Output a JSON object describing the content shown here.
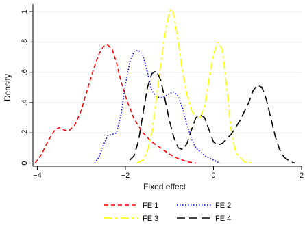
{
  "chart_data": {
    "type": "line",
    "title": "",
    "xlabel": "Fixed effect",
    "ylabel": "Density",
    "xlim": [
      -4.1,
      2.0
    ],
    "ylim": [
      -0.02,
      1.05
    ],
    "x_ticks": [
      -4,
      -2,
      0,
      2
    ],
    "x_tick_labels": [
      "−4",
      "−2",
      "0",
      "2"
    ],
    "y_ticks": [
      0,
      0.2,
      0.4,
      0.6,
      0.8,
      1
    ],
    "y_tick_labels": [
      "0",
      ".2",
      ".4",
      ".6",
      ".8",
      "1"
    ],
    "grid": "horizontal",
    "legend_position": "bottom",
    "series": [
      {
        "name": "FE 1",
        "color": "#ff0000",
        "dash": "short-dash",
        "points": [
          [
            -4.05,
            0.0
          ],
          [
            -3.9,
            0.06
          ],
          [
            -3.75,
            0.15
          ],
          [
            -3.6,
            0.22
          ],
          [
            -3.5,
            0.235
          ],
          [
            -3.4,
            0.22
          ],
          [
            -3.3,
            0.21
          ],
          [
            -3.15,
            0.25
          ],
          [
            -3.0,
            0.35
          ],
          [
            -2.85,
            0.5
          ],
          [
            -2.7,
            0.64
          ],
          [
            -2.6,
            0.72
          ],
          [
            -2.5,
            0.77
          ],
          [
            -2.4,
            0.78
          ],
          [
            -2.3,
            0.75
          ],
          [
            -2.2,
            0.66
          ],
          [
            -2.1,
            0.54
          ],
          [
            -1.95,
            0.4
          ],
          [
            -1.8,
            0.29
          ],
          [
            -1.6,
            0.2
          ],
          [
            -1.4,
            0.14
          ],
          [
            -1.2,
            0.1
          ],
          [
            -1.0,
            0.06
          ],
          [
            -0.8,
            0.03
          ],
          [
            -0.6,
            0.01
          ],
          [
            -0.4,
            0.0
          ]
        ]
      },
      {
        "name": "FE 2",
        "color": "#0000ff",
        "dash": "dotted",
        "points": [
          [
            -2.7,
            0.0
          ],
          [
            -2.6,
            0.04
          ],
          [
            -2.5,
            0.12
          ],
          [
            -2.4,
            0.18
          ],
          [
            -2.3,
            0.19
          ],
          [
            -2.2,
            0.2
          ],
          [
            -2.1,
            0.32
          ],
          [
            -2.0,
            0.52
          ],
          [
            -1.9,
            0.67
          ],
          [
            -1.8,
            0.74
          ],
          [
            -1.7,
            0.745
          ],
          [
            -1.6,
            0.71
          ],
          [
            -1.5,
            0.6
          ],
          [
            -1.4,
            0.48
          ],
          [
            -1.3,
            0.44
          ],
          [
            -1.2,
            0.43
          ],
          [
            -1.1,
            0.44
          ],
          [
            -1.0,
            0.46
          ],
          [
            -0.9,
            0.47
          ],
          [
            -0.8,
            0.44
          ],
          [
            -0.7,
            0.36
          ],
          [
            -0.6,
            0.25
          ],
          [
            -0.5,
            0.16
          ],
          [
            -0.4,
            0.1
          ],
          [
            -0.2,
            0.05
          ],
          [
            0.0,
            0.02
          ],
          [
            0.15,
            0.0
          ]
        ]
      },
      {
        "name": "FE 3",
        "color": "#ffff00",
        "dash": "long-short",
        "points": [
          [
            -1.75,
            0.0
          ],
          [
            -1.6,
            0.02
          ],
          [
            -1.5,
            0.08
          ],
          [
            -1.4,
            0.2
          ],
          [
            -1.3,
            0.42
          ],
          [
            -1.2,
            0.65
          ],
          [
            -1.1,
            0.85
          ],
          [
            -1.0,
            1.0
          ],
          [
            -0.95,
            1.02
          ],
          [
            -0.9,
            0.98
          ],
          [
            -0.8,
            0.8
          ],
          [
            -0.7,
            0.6
          ],
          [
            -0.6,
            0.45
          ],
          [
            -0.5,
            0.35
          ],
          [
            -0.4,
            0.3
          ],
          [
            -0.3,
            0.3
          ],
          [
            -0.2,
            0.38
          ],
          [
            -0.1,
            0.55
          ],
          [
            0.0,
            0.72
          ],
          [
            0.1,
            0.8
          ],
          [
            0.2,
            0.75
          ],
          [
            0.3,
            0.5
          ],
          [
            0.4,
            0.22
          ],
          [
            0.5,
            0.07
          ],
          [
            0.7,
            0.01
          ],
          [
            0.9,
            0.0
          ]
        ]
      },
      {
        "name": "FE 4",
        "color": "#000000",
        "dash": "long-dash",
        "points": [
          [
            -1.9,
            0.02
          ],
          [
            -1.8,
            0.05
          ],
          [
            -1.7,
            0.15
          ],
          [
            -1.6,
            0.33
          ],
          [
            -1.5,
            0.5
          ],
          [
            -1.4,
            0.59
          ],
          [
            -1.3,
            0.61
          ],
          [
            -1.2,
            0.55
          ],
          [
            -1.1,
            0.42
          ],
          [
            -1.0,
            0.28
          ],
          [
            -0.9,
            0.17
          ],
          [
            -0.8,
            0.1
          ],
          [
            -0.7,
            0.09
          ],
          [
            -0.6,
            0.13
          ],
          [
            -0.5,
            0.22
          ],
          [
            -0.4,
            0.3
          ],
          [
            -0.3,
            0.32
          ],
          [
            -0.2,
            0.3
          ],
          [
            -0.1,
            0.22
          ],
          [
            0.0,
            0.14
          ],
          [
            0.1,
            0.12
          ],
          [
            0.2,
            0.13
          ],
          [
            0.4,
            0.19
          ],
          [
            0.6,
            0.28
          ],
          [
            0.8,
            0.4
          ],
          [
            0.9,
            0.48
          ],
          [
            1.0,
            0.515
          ],
          [
            1.1,
            0.5
          ],
          [
            1.2,
            0.42
          ],
          [
            1.3,
            0.3
          ],
          [
            1.4,
            0.18
          ],
          [
            1.5,
            0.09
          ],
          [
            1.6,
            0.04
          ],
          [
            1.75,
            0.01
          ],
          [
            1.85,
            0.0
          ]
        ]
      }
    ]
  }
}
